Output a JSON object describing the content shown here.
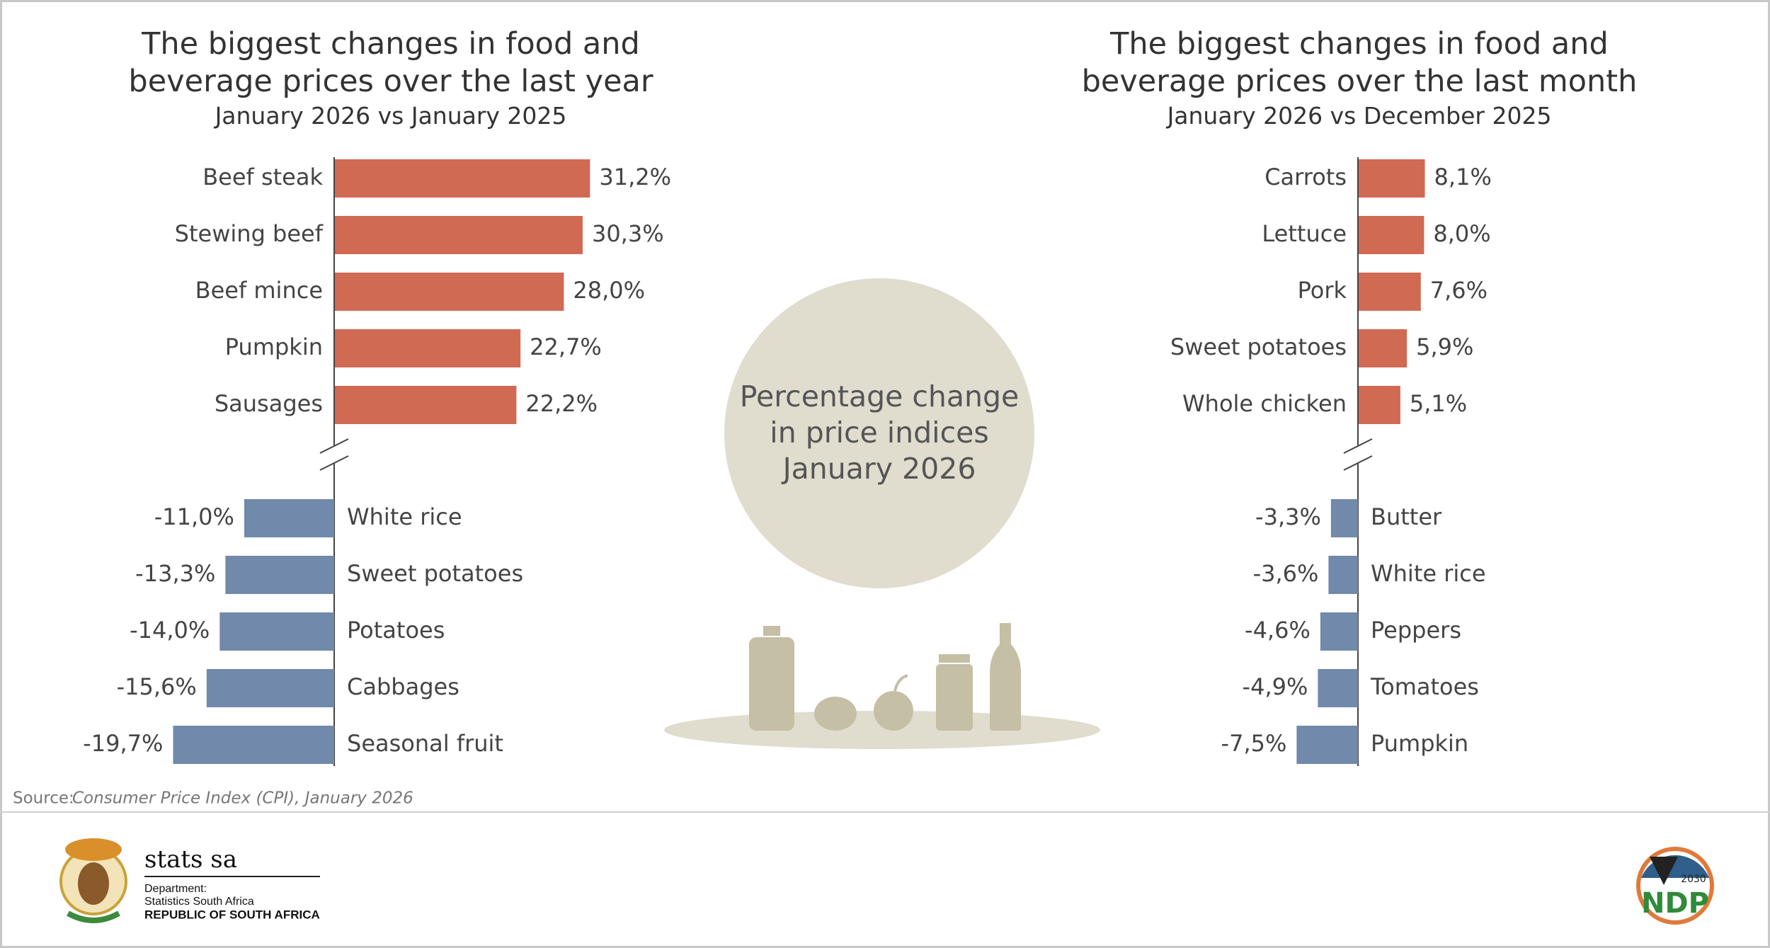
{
  "chart_data": [
    {
      "type": "bar",
      "orientation": "horizontal",
      "title": "The biggest changes in food and beverage prices over the last year",
      "subtitle": "January 2026 vs January 2025",
      "categories": [
        "Beef steak",
        "Stewing beef",
        "Beef mince",
        "Pumpkin",
        "Sausages",
        "White rice",
        "Sweet potatoes",
        "Potatoes",
        "Cabbages",
        "Seasonal fruit"
      ],
      "values": [
        31.2,
        30.3,
        28.0,
        22.7,
        22.2,
        -11.0,
        -13.3,
        -14.0,
        -15.6,
        -19.7
      ],
      "value_labels": [
        "31,2%",
        "30,3%",
        "28,0%",
        "22,7%",
        "22,2%",
        "-11,0%",
        "-13,3%",
        "-14,0%",
        "-15,6%",
        "-19,7%"
      ],
      "increase_color": "#d06a52",
      "decrease_color": "#7189aa"
    },
    {
      "type": "bar",
      "orientation": "horizontal",
      "title": "The biggest changes in food and beverage prices over the last month",
      "subtitle": "January 2026 vs December 2025",
      "categories": [
        "Carrots",
        "Lettuce",
        "Pork",
        "Sweet potatoes",
        "Whole chicken",
        "Butter",
        "White rice",
        "Peppers",
        "Tomatoes",
        "Pumpkin"
      ],
      "values": [
        8.1,
        8.0,
        7.6,
        5.9,
        5.1,
        -3.3,
        -3.6,
        -4.6,
        -4.9,
        -7.5
      ],
      "value_labels": [
        "8,1%",
        "8,0%",
        "7,6%",
        "5,9%",
        "5,1%",
        "-3,3%",
        "-3,6%",
        "-4,6%",
        "-4,9%",
        "-7,5%"
      ],
      "increase_color": "#d06a52",
      "decrease_color": "#7189aa"
    }
  ],
  "center_text": [
    "Percentage change",
    "in price indices",
    "January 2026"
  ],
  "source": {
    "label": "Source:",
    "text": "Consumer Price Index (CPI), January 2026"
  },
  "logo": {
    "name": "stats sa",
    "line1": "Department:",
    "line2": "Statistics South Africa",
    "line3": "REPUBLIC OF SOUTH AFRICA"
  },
  "ndp_logo": {
    "name": "NDP",
    "year": "2030"
  }
}
